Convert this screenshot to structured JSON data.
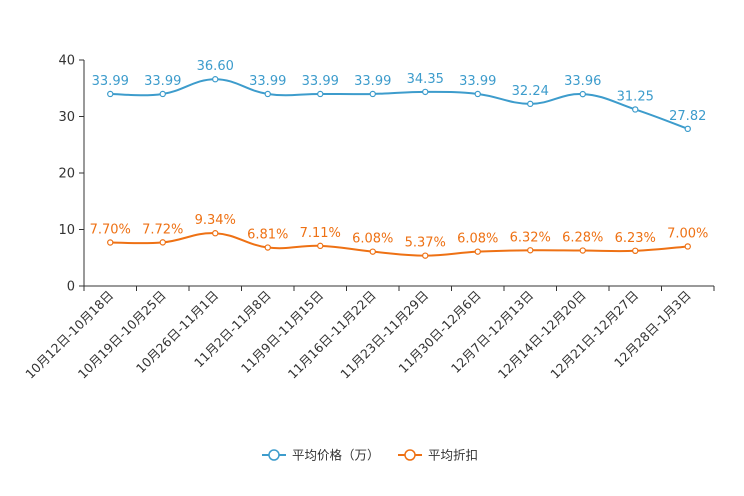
{
  "chart_data": {
    "type": "line",
    "title": "",
    "xlabel": "",
    "ylabel": "",
    "ylim": [
      0,
      40
    ],
    "yticks": [
      0,
      10,
      20,
      30,
      40
    ],
    "categories": [
      "10月12日-10月18日",
      "10月19日-10月25日",
      "10月26日-11月1日",
      "11月2日-11月8日",
      "11月9日-11月15日",
      "11月16日-11月22日",
      "11月23日-11月29日",
      "11月30日-12月6日",
      "12月7日-12月13日",
      "12月14日-12月20日",
      "12月21日-12月27日",
      "12月28日-1月3日"
    ],
    "series": [
      {
        "name": "平均价格（万）",
        "color": "#3d9ccc",
        "values": [
          33.99,
          33.99,
          36.6,
          33.99,
          33.99,
          33.99,
          34.35,
          33.99,
          32.24,
          33.96,
          31.25,
          27.82
        ],
        "labels": [
          "33.99",
          "33.99",
          "36.60",
          "33.99",
          "33.99",
          "33.99",
          "34.35",
          "33.99",
          "32.24",
          "33.96",
          "31.25",
          "27.82"
        ]
      },
      {
        "name": "平均折扣",
        "color": "#ee7114",
        "values": [
          7.7,
          7.72,
          9.34,
          6.81,
          7.11,
          6.08,
          5.37,
          6.08,
          6.32,
          6.28,
          6.23,
          7.0
        ],
        "labels": [
          "7.70%",
          "7.72%",
          "9.34%",
          "6.81%",
          "7.11%",
          "6.08%",
          "5.37%",
          "6.08%",
          "6.32%",
          "6.28%",
          "6.23%",
          "7.00%"
        ]
      }
    ],
    "legend": "bottom-center",
    "grid": false
  }
}
